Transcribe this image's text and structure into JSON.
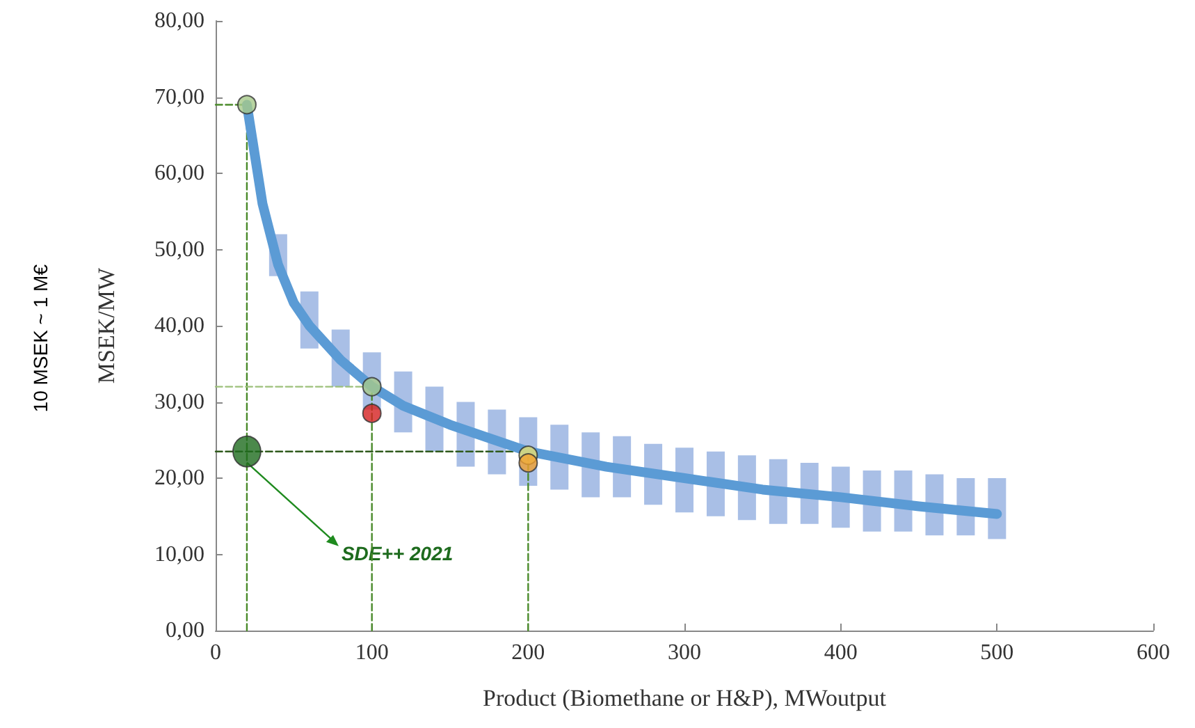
{
  "chart_data": {
    "type": "line",
    "xlabel": "Product (Biomethane or H&P), MWoutput",
    "ylabel": "MSEK/MW",
    "annotations": [
      "10 MSEK ~ 1 M€",
      {
        "text": "SDE++ 2021",
        "x": 20,
        "y": 23.5
      }
    ],
    "xlim": [
      0,
      600
    ],
    "xticks": [
      0,
      100,
      200,
      300,
      400,
      500,
      600
    ],
    "ylim": [
      0,
      80
    ],
    "yticks": [
      {
        "value": 0,
        "label": "0,00"
      },
      {
        "value": 10,
        "label": "10,00"
      },
      {
        "value": 20,
        "label": "20,00"
      },
      {
        "value": 30,
        "label": "30,00"
      },
      {
        "value": 40,
        "label": "40,00"
      },
      {
        "value": 50,
        "label": "50,00"
      },
      {
        "value": 60,
        "label": "60,00"
      },
      {
        "value": 70,
        "label": "70,00"
      },
      {
        "value": 80,
        "label": "80,00"
      }
    ],
    "grid": false,
    "series": [
      {
        "type": "bar",
        "color": "#a9bfe6",
        "x": [
          40,
          60,
          80,
          100,
          120,
          140,
          160,
          180,
          200,
          220,
          240,
          260,
          280,
          300,
          320,
          340,
          360,
          380,
          400,
          420,
          440,
          460,
          480,
          500
        ],
        "base": [
          46.5,
          37,
          32,
          29,
          26,
          23.5,
          21.5,
          20.5,
          19,
          18.5,
          17.5,
          17.5,
          16.5,
          15.5,
          15,
          14.5,
          14,
          14,
          13.5,
          13,
          13,
          12.5,
          12.5,
          12
        ],
        "values": [
          5.5,
          7.5,
          7.5,
          7.5,
          8,
          8.5,
          8.5,
          8.5,
          9,
          8.5,
          8.5,
          8,
          8,
          8.5,
          8.5,
          8.5,
          8.5,
          8,
          8,
          8,
          8,
          8,
          7.5,
          8
        ]
      },
      {
        "color": "#5b9bd5",
        "marker": "none",
        "line_style": "solid",
        "x": [
          20,
          30,
          40,
          50,
          60,
          80,
          100,
          120,
          150,
          200,
          250,
          300,
          350,
          400,
          450,
          500
        ],
        "values": [
          69,
          56,
          48,
          43,
          40,
          35.5,
          32,
          29.5,
          27,
          23.5,
          21.5,
          20,
          18.5,
          17.5,
          16.3,
          15.3
        ]
      },
      {
        "color": "#4a8a2a",
        "marker": "none",
        "line_style": "dashed",
        "x": [
          20,
          20
        ],
        "values": [
          0,
          69
        ]
      },
      {
        "type": "line",
        "color": "#4a8a2a",
        "marker": "none",
        "line_style": "dashed",
        "x": [
          0,
          20
        ],
        "values": [
          69,
          69
        ]
      },
      {
        "type": "line",
        "color": "#4a8a2a",
        "marker": "none",
        "line_style": "dashed",
        "x": [
          100,
          100
        ],
        "values": [
          0,
          32
        ]
      },
      {
        "type": "line",
        "color": "#9cc07a",
        "marker": "none",
        "line_style": "dashed",
        "x": [
          0,
          100
        ],
        "values": [
          32,
          32
        ]
      },
      {
        "type": "line",
        "color": "#4a8a2a",
        "marker": "none",
        "line_style": "dashed",
        "x": [
          200,
          200
        ],
        "values": [
          0,
          23.5
        ]
      },
      {
        "type": "line",
        "color": "#2f5a1c",
        "marker": "none",
        "line_style": "dashed",
        "x": [
          0,
          200
        ],
        "values": [
          23.5,
          23.5
        ]
      },
      {
        "type": "scatter",
        "marker": "circle",
        "x": [
          20,
          100,
          100,
          200,
          200
        ],
        "values": [
          69,
          32,
          28.5,
          23,
          22
        ],
        "colors": [
          "#a6c98a",
          "#a6c98a",
          "#d42020",
          "#e8e070",
          "#f0a030"
        ]
      },
      {
        "type": "scatter",
        "marker": "circle",
        "x": [
          20
        ],
        "values": [
          23.5
        ],
        "colors": [
          "#1e6b1e"
        ]
      }
    ]
  }
}
